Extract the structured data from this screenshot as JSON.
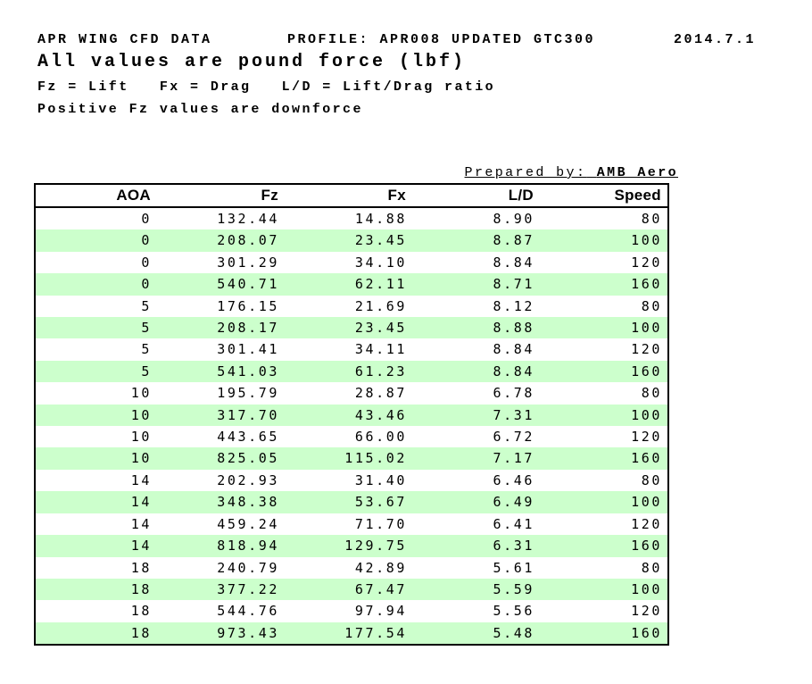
{
  "document": {
    "header": {
      "title": "APR WING CFD DATA",
      "profile": "PROFILE: APR008 UPDATED GTC300",
      "date": "2014.7.1",
      "subtitle": "All values are pound force (lbf)",
      "legend": "Fz = Lift   Fx = Drag   L/D = Lift/Drag ratio",
      "note": "Positive Fz values are downforce"
    },
    "prepared_by": {
      "label": "Prepared by:",
      "value": "AMB Aero"
    }
  },
  "colors": {
    "row_stripe": "#ccffcc",
    "table_border": "#000000",
    "text": "#000000",
    "background": "#ffffff"
  },
  "table": {
    "columns": [
      "AOA",
      "Fz",
      "Fx",
      "L/D",
      "Speed"
    ],
    "rows": [
      [
        "0",
        "132.44",
        "14.88",
        "8.90",
        "80"
      ],
      [
        "0",
        "208.07",
        "23.45",
        "8.87",
        "100"
      ],
      [
        "0",
        "301.29",
        "34.10",
        "8.84",
        "120"
      ],
      [
        "0",
        "540.71",
        "62.11",
        "8.71",
        "160"
      ],
      [
        "5",
        "176.15",
        "21.69",
        "8.12",
        "80"
      ],
      [
        "5",
        "208.17",
        "23.45",
        "8.88",
        "100"
      ],
      [
        "5",
        "301.41",
        "34.11",
        "8.84",
        "120"
      ],
      [
        "5",
        "541.03",
        "61.23",
        "8.84",
        "160"
      ],
      [
        "10",
        "195.79",
        "28.87",
        "6.78",
        "80"
      ],
      [
        "10",
        "317.70",
        "43.46",
        "7.31",
        "100"
      ],
      [
        "10",
        "443.65",
        "66.00",
        "6.72",
        "120"
      ],
      [
        "10",
        "825.05",
        "115.02",
        "7.17",
        "160"
      ],
      [
        "14",
        "202.93",
        "31.40",
        "6.46",
        "80"
      ],
      [
        "14",
        "348.38",
        "53.67",
        "6.49",
        "100"
      ],
      [
        "14",
        "459.24",
        "71.70",
        "6.41",
        "120"
      ],
      [
        "14",
        "818.94",
        "129.75",
        "6.31",
        "160"
      ],
      [
        "18",
        "240.79",
        "42.89",
        "5.61",
        "80"
      ],
      [
        "18",
        "377.22",
        "67.47",
        "5.59",
        "100"
      ],
      [
        "18",
        "544.76",
        "97.94",
        "5.56",
        "120"
      ],
      [
        "18",
        "973.43",
        "177.54",
        "5.48",
        "160"
      ]
    ],
    "stripe_color": "#ccffcc"
  }
}
